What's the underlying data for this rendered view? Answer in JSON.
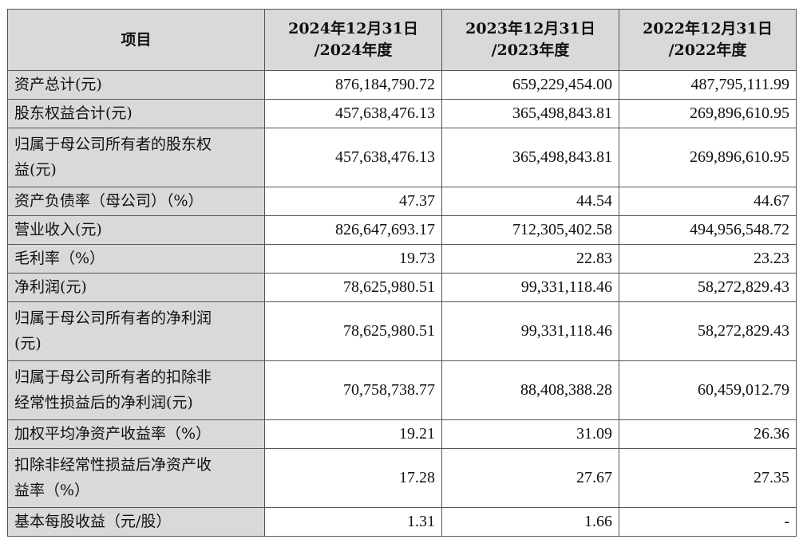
{
  "header": {
    "item": "项目",
    "col1_line1": "2024年12月31日",
    "col1_line2": "/2024年度",
    "col2_line1": "2023年12月31日",
    "col2_line2": "/2023年度",
    "col3_line1": "2022年12月31日",
    "col3_line2": "/2022年度"
  },
  "rows": [
    {
      "label": "资产总计(元)",
      "v2024": "876,184,790.72",
      "v2023": "659,229,454.00",
      "v2022": "487,795,111.99"
    },
    {
      "label": "股东权益合计(元)",
      "v2024": "457,638,476.13",
      "v2023": "365,498,843.81",
      "v2022": "269,896,610.95"
    },
    {
      "label_line1": "归属于母公司所有者的股东权",
      "label_line2": "益(元)",
      "v2024": "457,638,476.13",
      "v2023": "365,498,843.81",
      "v2022": "269,896,610.95"
    },
    {
      "label": "资产负债率（母公司）（%）",
      "v2024": "47.37",
      "v2023": "44.54",
      "v2022": "44.67"
    },
    {
      "label": "营业收入(元)",
      "v2024": "826,647,693.17",
      "v2023": "712,305,402.58",
      "v2022": "494,956,548.72"
    },
    {
      "label": "毛利率（%）",
      "v2024": "19.73",
      "v2023": "22.83",
      "v2022": "23.23"
    },
    {
      "label": "净利润(元)",
      "v2024": "78,625,980.51",
      "v2023": "99,331,118.46",
      "v2022": "58,272,829.43"
    },
    {
      "label_line1": "归属于母公司所有者的净利润",
      "label_line2": "(元)",
      "v2024": "78,625,980.51",
      "v2023": "99,331,118.46",
      "v2022": "58,272,829.43"
    },
    {
      "label_line1": "归属于母公司所有者的扣除非",
      "label_line2": "经常性损益后的净利润(元)",
      "v2024": "70,758,738.77",
      "v2023": "88,408,388.28",
      "v2022": "60,459,012.79"
    },
    {
      "label": "加权平均净资产收益率（%）",
      "v2024": "19.21",
      "v2023": "31.09",
      "v2022": "26.36"
    },
    {
      "label_line1": "扣除非经常性损益后净资产收",
      "label_line2": "益率（%）",
      "v2024": "17.28",
      "v2023": "27.67",
      "v2022": "27.35"
    },
    {
      "label": "基本每股收益（元/股）",
      "v2024": "1.31",
      "v2023": "1.66",
      "v2022": "-"
    }
  ]
}
